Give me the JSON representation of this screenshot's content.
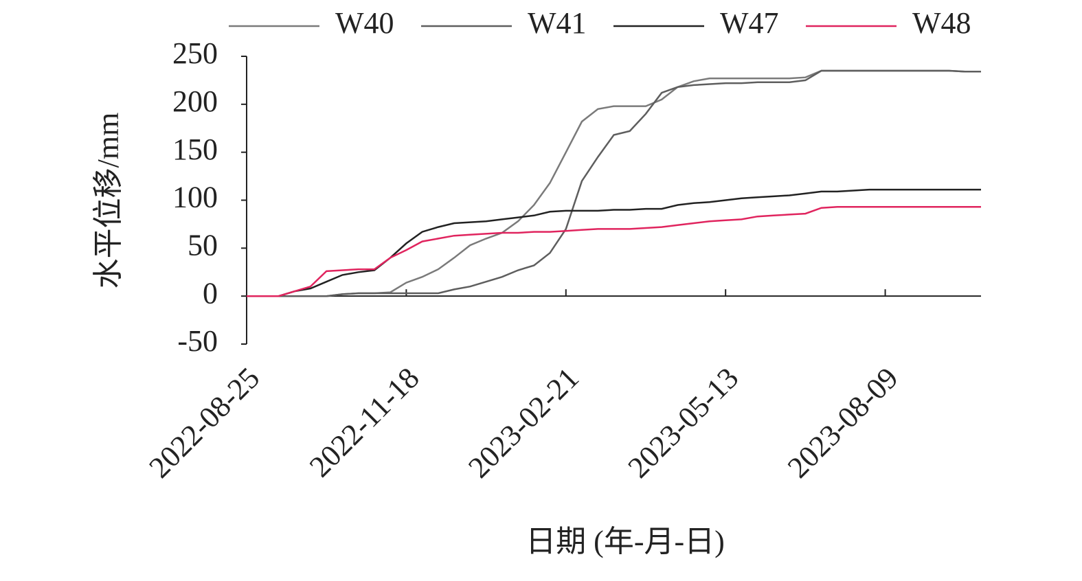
{
  "chart_data": {
    "type": "line",
    "xlabel": "日期 (年-月-日)",
    "ylabel": "水平位移/mm",
    "categories": [
      "2022-08-25",
      null,
      null,
      null,
      null,
      null,
      null,
      null,
      null,
      null,
      "2022-11-18",
      null,
      null,
      null,
      null,
      null,
      null,
      null,
      null,
      null,
      "2023-02-21",
      null,
      null,
      null,
      null,
      null,
      null,
      null,
      null,
      null,
      "2023-05-13",
      null,
      null,
      null,
      null,
      null,
      null,
      null,
      null,
      null,
      "2023-08-09",
      null,
      null,
      null,
      null,
      null,
      null
    ],
    "ylim": [
      -50,
      250
    ],
    "yticks": [
      -50,
      0,
      50,
      100,
      150,
      200,
      250
    ],
    "legend": "top",
    "series": [
      {
        "name": "W40",
        "color": "#7a7a7a",
        "values": [
          0,
          0,
          0,
          0,
          0,
          0,
          2,
          3,
          3,
          4,
          14,
          20,
          28,
          40,
          53,
          60,
          66,
          78,
          95,
          118,
          150,
          182,
          195,
          198,
          198,
          198,
          205,
          218,
          224,
          227,
          227,
          227,
          227,
          227,
          227,
          228,
          235,
          235,
          235,
          235,
          235,
          235,
          235,
          235,
          235,
          234,
          234
        ]
      },
      {
        "name": "W41",
        "color": "#5e5e5e",
        "values": [
          0,
          0,
          0,
          0,
          0,
          0,
          2,
          3,
          3,
          3,
          3,
          3,
          3,
          7,
          10,
          15,
          20,
          27,
          32,
          45,
          70,
          120,
          145,
          168,
          172,
          190,
          212,
          218,
          220,
          221,
          222,
          222,
          223,
          223,
          223,
          225,
          235,
          235,
          235,
          235,
          235,
          235,
          235,
          235,
          235,
          234,
          234
        ]
      },
      {
        "name": "W47",
        "color": "#222222",
        "values": [
          0,
          0,
          0,
          5,
          8,
          15,
          22,
          25,
          27,
          40,
          55,
          67,
          72,
          76,
          77,
          78,
          80,
          82,
          84,
          88,
          89,
          89,
          89,
          90,
          90,
          91,
          91,
          95,
          97,
          98,
          100,
          102,
          103,
          104,
          105,
          107,
          109,
          109,
          110,
          111,
          111,
          111,
          111,
          111,
          111,
          111,
          111
        ]
      },
      {
        "name": "W48",
        "color": "#e0245e",
        "values": [
          0,
          0,
          0,
          5,
          10,
          26,
          27,
          28,
          28,
          40,
          48,
          57,
          60,
          63,
          64,
          65,
          66,
          66,
          67,
          67,
          68,
          69,
          70,
          70,
          70,
          71,
          72,
          74,
          76,
          78,
          79,
          80,
          83,
          84,
          85,
          86,
          92,
          93,
          93,
          93,
          93,
          93,
          93,
          93,
          93,
          93,
          93
        ]
      }
    ]
  }
}
